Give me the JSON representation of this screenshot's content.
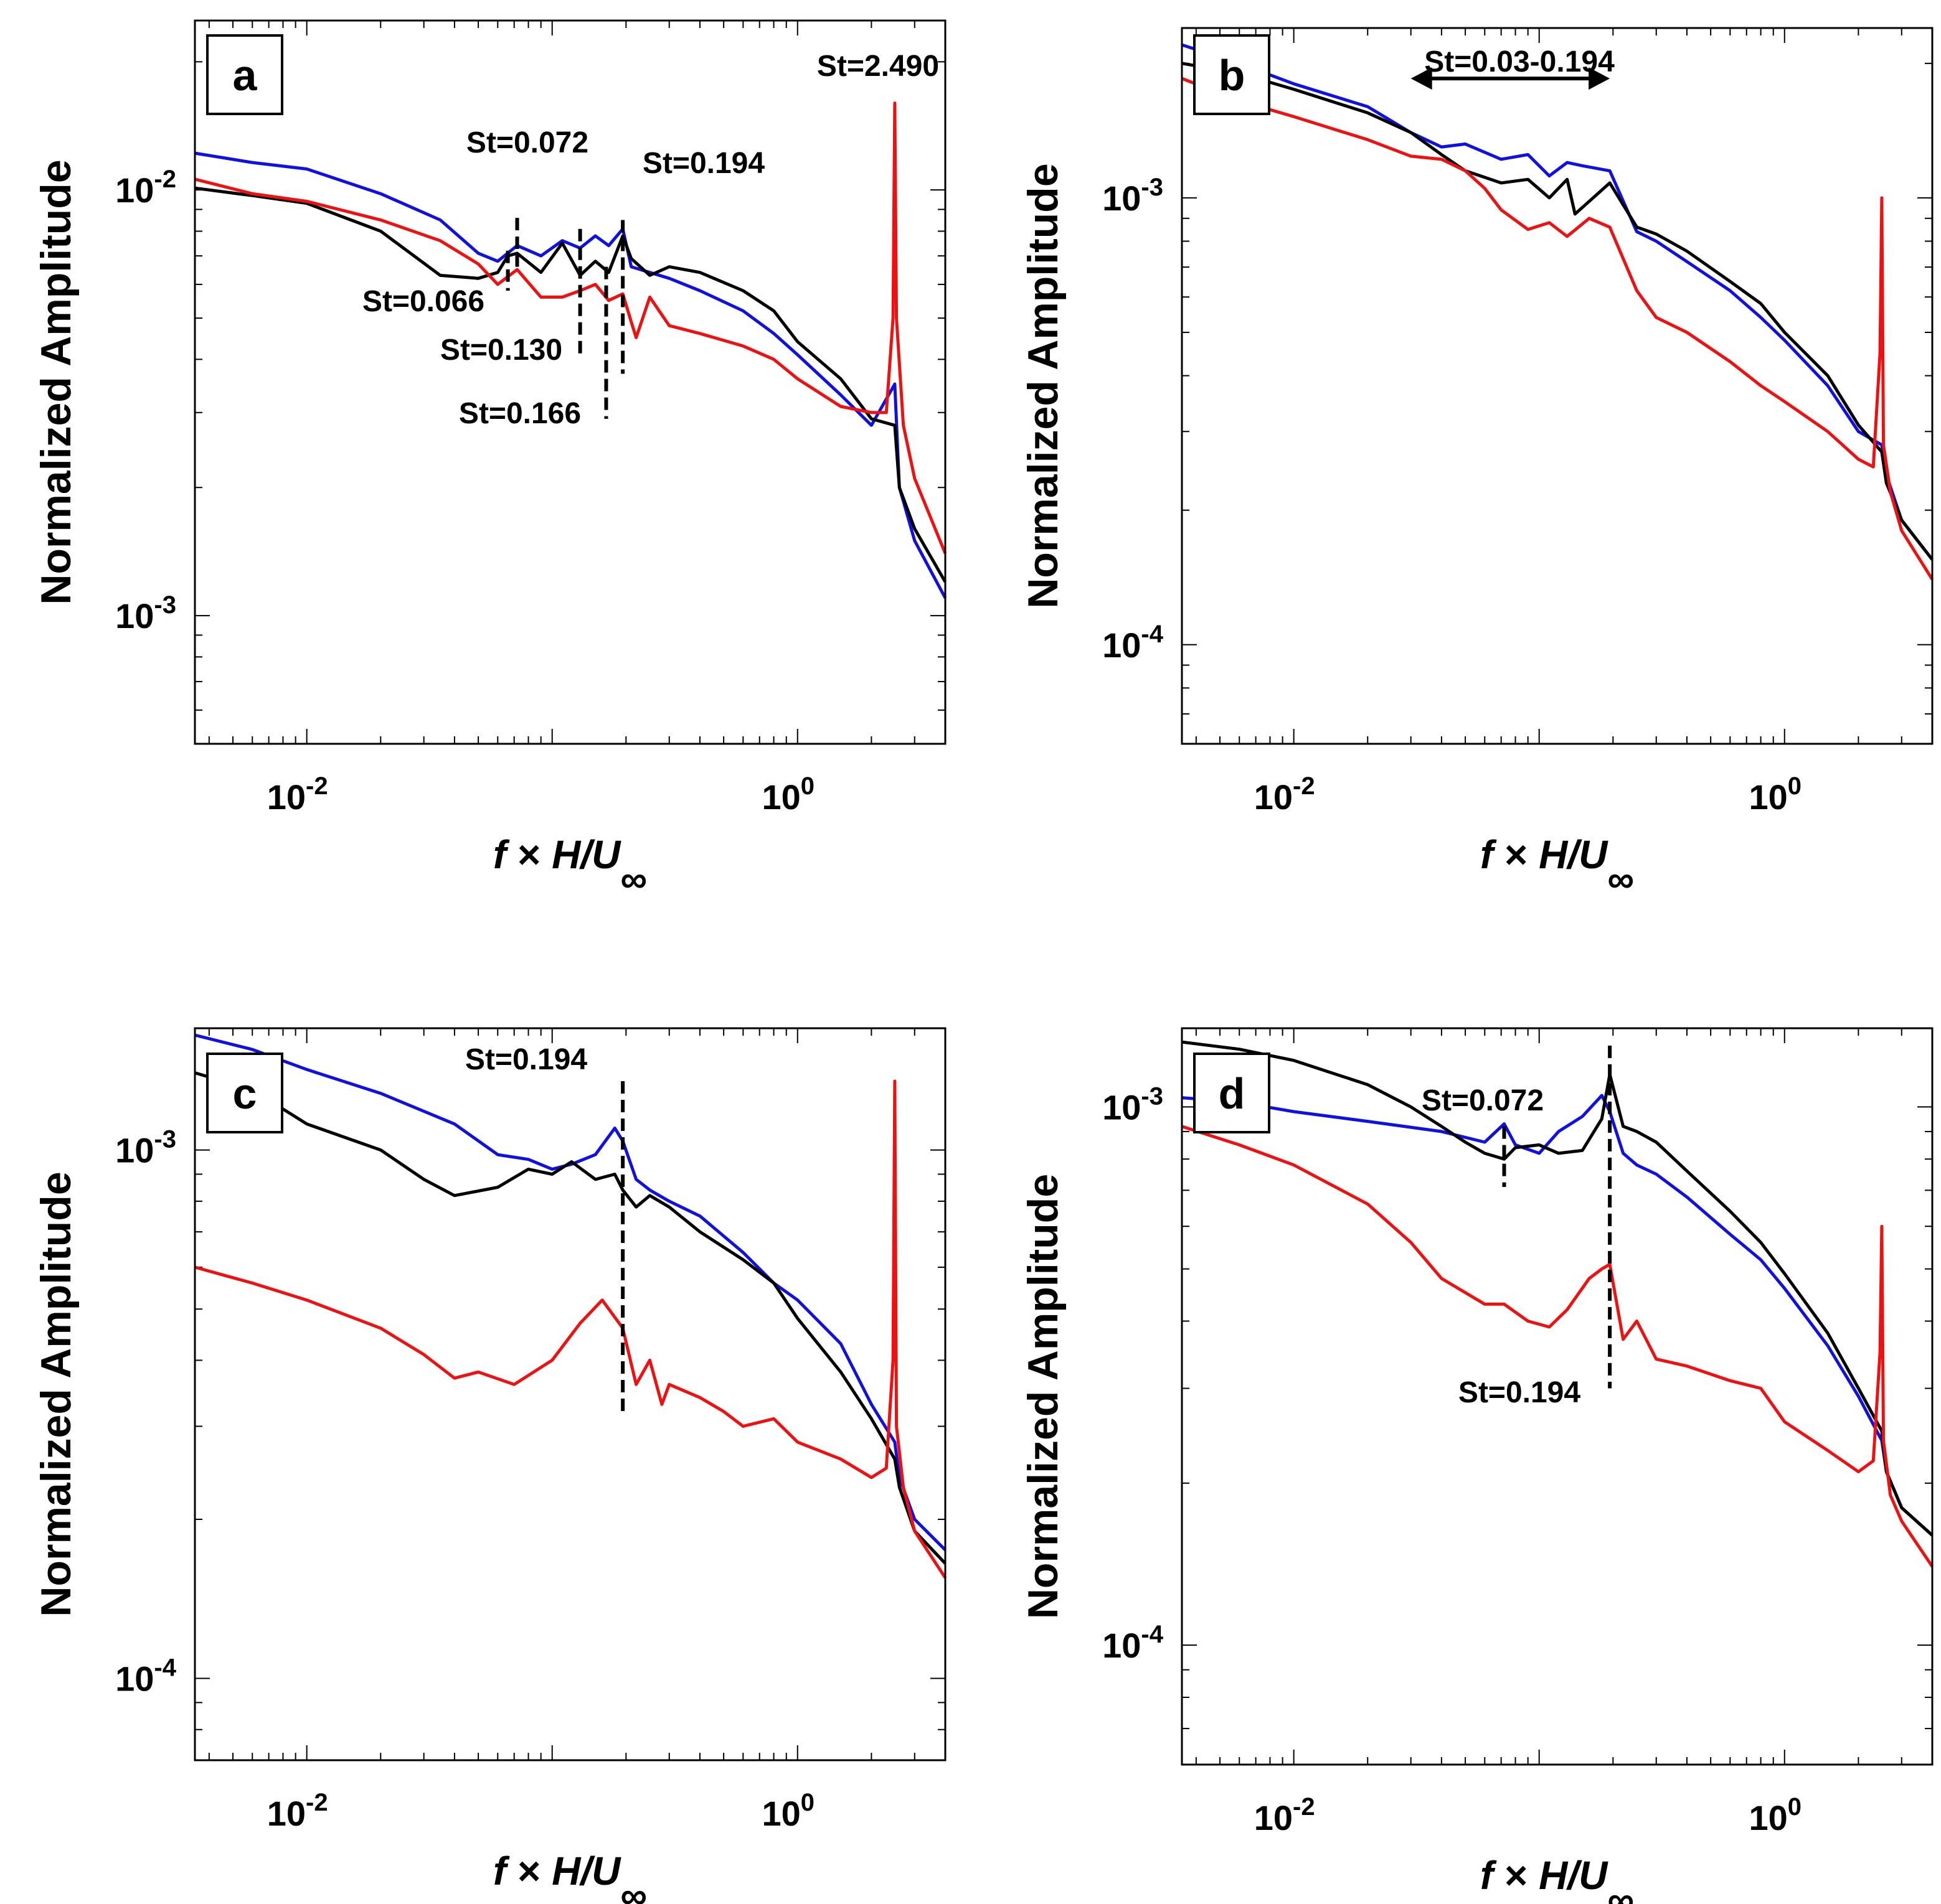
{
  "figure": {
    "ylabel": "Normalized Amplitude",
    "xlabel": {
      "f": "f",
      "times": "×",
      "hu": "H/U",
      "sub": "∞"
    },
    "xtick_labels": [
      {
        "base": "10",
        "exp": "-2"
      },
      {
        "base": "10",
        "exp": "0"
      }
    ],
    "colors": {
      "blue": "#1010e0",
      "black": "#000000",
      "red": "#ee1111"
    }
  },
  "chart_data": [
    {
      "type": "line",
      "panel": "a",
      "xscale": "log",
      "yscale": "log",
      "xlim": [
        0.0035,
        4.0
      ],
      "ylim": [
        0.0005,
        0.025
      ],
      "ytick_labels": [
        {
          "base": "10",
          "exp": "-2",
          "value": 0.01
        },
        {
          "base": "10",
          "exp": "-3",
          "value": 0.001
        }
      ],
      "series": [
        {
          "name": "blue",
          "color": "#1010e0",
          "x": [
            0.0035,
            0.006,
            0.01,
            0.02,
            0.035,
            0.05,
            0.06,
            0.072,
            0.09,
            0.11,
            0.13,
            0.15,
            0.17,
            0.194,
            0.21,
            0.25,
            0.3,
            0.4,
            0.6,
            0.8,
            1.0,
            1.5,
            2.0,
            2.49,
            2.6,
            3.0,
            4.0
          ],
          "y": [
            0.0122,
            0.0116,
            0.0112,
            0.0098,
            0.0085,
            0.0071,
            0.0068,
            0.0074,
            0.007,
            0.0076,
            0.0073,
            0.0078,
            0.0074,
            0.0081,
            0.0066,
            0.0064,
            0.0062,
            0.0058,
            0.0052,
            0.0046,
            0.0041,
            0.0033,
            0.0028,
            0.0035,
            0.002,
            0.0015,
            0.0011
          ]
        },
        {
          "name": "black",
          "color": "#000000",
          "x": [
            0.0035,
            0.006,
            0.01,
            0.02,
            0.035,
            0.05,
            0.06,
            0.066,
            0.072,
            0.09,
            0.11,
            0.13,
            0.15,
            0.17,
            0.194,
            0.21,
            0.25,
            0.3,
            0.4,
            0.6,
            0.8,
            1.0,
            1.5,
            2.0,
            2.49,
            2.6,
            3.0,
            4.0
          ],
          "y": [
            0.0101,
            0.0097,
            0.0093,
            0.008,
            0.0063,
            0.0062,
            0.0064,
            0.007,
            0.0071,
            0.0064,
            0.0075,
            0.0063,
            0.0068,
            0.0064,
            0.0078,
            0.0069,
            0.0063,
            0.0066,
            0.0064,
            0.0058,
            0.0052,
            0.0044,
            0.0036,
            0.0029,
            0.0028,
            0.002,
            0.0016,
            0.0012
          ]
        },
        {
          "name": "red",
          "color": "#ee1111",
          "x": [
            0.0035,
            0.006,
            0.01,
            0.02,
            0.035,
            0.05,
            0.06,
            0.072,
            0.09,
            0.11,
            0.13,
            0.15,
            0.17,
            0.194,
            0.21,
            0.22,
            0.25,
            0.3,
            0.4,
            0.6,
            0.8,
            1.0,
            1.5,
            2.0,
            2.3,
            2.45,
            2.49,
            2.53,
            2.7,
            3.0,
            4.0
          ],
          "y": [
            0.0106,
            0.0098,
            0.0094,
            0.0085,
            0.0076,
            0.0067,
            0.006,
            0.0065,
            0.0056,
            0.0056,
            0.0058,
            0.006,
            0.0055,
            0.0057,
            0.0049,
            0.0045,
            0.0056,
            0.0048,
            0.0046,
            0.0043,
            0.004,
            0.0036,
            0.0031,
            0.003,
            0.003,
            0.005,
            0.016,
            0.005,
            0.0028,
            0.0021,
            0.0014
          ]
        }
      ],
      "vlines": [
        {
          "x": 0.066,
          "y0": 0.0058,
          "y1": 0.0072
        },
        {
          "x": 0.072,
          "y0": 0.0066,
          "y1": 0.0086
        },
        {
          "x": 0.13,
          "y0": 0.0041,
          "y1": 0.0081
        },
        {
          "x": 0.166,
          "y0": 0.0029,
          "y1": 0.0066
        },
        {
          "x": 0.194,
          "y0": 0.0037,
          "y1": 0.0085
        }
      ],
      "annotations": [
        {
          "text": "St=0.072",
          "anchor": "above"
        },
        {
          "text": "St=0.194",
          "anchor": "right"
        },
        {
          "text": "St=0.066",
          "anchor": "below-left"
        },
        {
          "text": "St=0.130",
          "anchor": "below-left"
        },
        {
          "text": "St=0.166",
          "anchor": "below-left"
        },
        {
          "text": "St=2.490",
          "anchor": "top-right"
        }
      ]
    },
    {
      "type": "line",
      "panel": "b",
      "xscale": "log",
      "yscale": "log",
      "xlim": [
        0.0035,
        4.0
      ],
      "ylim": [
        6e-05,
        0.0024
      ],
      "ytick_labels": [
        {
          "base": "10",
          "exp": "-3",
          "value": 0.001
        },
        {
          "base": "10",
          "exp": "-4",
          "value": 0.0001
        }
      ],
      "series": [
        {
          "name": "blue",
          "color": "#1010e0",
          "x": [
            0.0035,
            0.006,
            0.01,
            0.02,
            0.03,
            0.04,
            0.05,
            0.07,
            0.09,
            0.11,
            0.13,
            0.15,
            0.194,
            0.25,
            0.3,
            0.4,
            0.6,
            0.8,
            1.0,
            1.5,
            2.0,
            2.49,
            2.6,
            3.0,
            4.0
          ],
          "y": [
            0.0022,
            0.002,
            0.0018,
            0.0016,
            0.0014,
            0.0013,
            0.00132,
            0.00122,
            0.00125,
            0.00112,
            0.0012,
            0.00118,
            0.00115,
            0.00084,
            0.0008,
            0.00072,
            0.00062,
            0.00054,
            0.00048,
            0.00038,
            0.0003,
            0.00028,
            0.00024,
            0.00019,
            0.000155
          ]
        },
        {
          "name": "black",
          "color": "#000000",
          "x": [
            0.0035,
            0.006,
            0.01,
            0.02,
            0.03,
            0.04,
            0.05,
            0.07,
            0.09,
            0.11,
            0.13,
            0.14,
            0.194,
            0.25,
            0.3,
            0.4,
            0.6,
            0.8,
            1.0,
            1.5,
            2.0,
            2.49,
            2.6,
            3.0,
            4.0
          ],
          "y": [
            0.002,
            0.0019,
            0.00175,
            0.00155,
            0.0014,
            0.00125,
            0.00115,
            0.00108,
            0.0011,
            0.001,
            0.0011,
            0.00092,
            0.00108,
            0.00086,
            0.00083,
            0.00076,
            0.00065,
            0.00058,
            0.0005,
            0.0004,
            0.00031,
            0.00027,
            0.00023,
            0.00019,
            0.000155
          ]
        },
        {
          "name": "red",
          "color": "#ee1111",
          "x": [
            0.0035,
            0.006,
            0.01,
            0.02,
            0.03,
            0.04,
            0.05,
            0.06,
            0.07,
            0.09,
            0.11,
            0.13,
            0.16,
            0.194,
            0.25,
            0.3,
            0.4,
            0.6,
            0.8,
            1.0,
            1.5,
            2.0,
            2.3,
            2.45,
            2.49,
            2.53,
            2.7,
            3.0,
            4.0
          ],
          "y": [
            0.00185,
            0.00165,
            0.00152,
            0.00135,
            0.00124,
            0.00122,
            0.00115,
            0.00105,
            0.00094,
            0.00085,
            0.00088,
            0.00082,
            0.0009,
            0.00086,
            0.00062,
            0.00054,
            0.0005,
            0.00043,
            0.00038,
            0.00035,
            0.0003,
            0.00026,
            0.00025,
            0.00045,
            0.001,
            0.00028,
            0.00022,
            0.00018,
            0.00014
          ]
        }
      ],
      "arrow": {
        "x0": 0.03,
        "x1": 0.194,
        "y": 0.00185
      },
      "annotations": [
        {
          "text": "St=0.03-0.194",
          "anchor": "above-arrow"
        }
      ]
    },
    {
      "type": "line",
      "panel": "c",
      "xscale": "log",
      "yscale": "log",
      "xlim": [
        0.0035,
        4.0
      ],
      "ylim": [
        7e-05,
        0.0017
      ],
      "ytick_labels": [
        {
          "base": "10",
          "exp": "-3",
          "value": 0.001
        },
        {
          "base": "10",
          "exp": "-4",
          "value": 0.0001
        }
      ],
      "series": [
        {
          "name": "blue",
          "color": "#1010e0",
          "x": [
            0.0035,
            0.006,
            0.01,
            0.02,
            0.04,
            0.06,
            0.08,
            0.1,
            0.12,
            0.15,
            0.18,
            0.194,
            0.22,
            0.25,
            0.3,
            0.4,
            0.6,
            0.8,
            1.0,
            1.5,
            2.0,
            2.49,
            2.6,
            3.0,
            4.0
          ],
          "y": [
            0.00165,
            0.00155,
            0.00142,
            0.00128,
            0.00112,
            0.00098,
            0.00096,
            0.00092,
            0.00094,
            0.00098,
            0.0011,
            0.00104,
            0.00088,
            0.00084,
            0.0008,
            0.00075,
            0.00064,
            0.00056,
            0.00052,
            0.00043,
            0.00033,
            0.00028,
            0.00024,
            0.0002,
            0.000175
          ]
        },
        {
          "name": "black",
          "color": "#000000",
          "x": [
            0.0035,
            0.006,
            0.01,
            0.02,
            0.03,
            0.04,
            0.06,
            0.08,
            0.1,
            0.12,
            0.15,
            0.18,
            0.194,
            0.22,
            0.25,
            0.3,
            0.4,
            0.6,
            0.8,
            1.0,
            1.5,
            2.0,
            2.49,
            2.6,
            3.0,
            4.0
          ],
          "y": [
            0.0014,
            0.0013,
            0.00112,
            0.001,
            0.00088,
            0.00082,
            0.00085,
            0.00092,
            0.0009,
            0.00095,
            0.00088,
            0.0009,
            0.00084,
            0.00078,
            0.00082,
            0.00078,
            0.0007,
            0.00062,
            0.00056,
            0.00048,
            0.00038,
            0.00031,
            0.00026,
            0.00023,
            0.00019,
            0.000165
          ]
        },
        {
          "name": "red",
          "color": "#ee1111",
          "x": [
            0.0035,
            0.006,
            0.01,
            0.02,
            0.03,
            0.04,
            0.05,
            0.07,
            0.1,
            0.13,
            0.16,
            0.194,
            0.22,
            0.25,
            0.28,
            0.3,
            0.4,
            0.5,
            0.6,
            0.8,
            1.0,
            1.5,
            2.0,
            2.3,
            2.45,
            2.49,
            2.53,
            2.7,
            3.0,
            4.0
          ],
          "y": [
            0.0006,
            0.00056,
            0.00052,
            0.00046,
            0.00041,
            0.00037,
            0.00038,
            0.00036,
            0.0004,
            0.00047,
            0.00052,
            0.00046,
            0.00036,
            0.0004,
            0.00033,
            0.00036,
            0.00034,
            0.00032,
            0.0003,
            0.00031,
            0.00028,
            0.00026,
            0.00024,
            0.00025,
            0.0004,
            0.00135,
            0.0003,
            0.00023,
            0.00019,
            0.000155
          ]
        }
      ],
      "vlines": [
        {
          "x": 0.194,
          "y0": 0.00032,
          "y1": 0.00135
        }
      ],
      "annotations": [
        {
          "text": "St=0.194",
          "anchor": "above"
        }
      ]
    },
    {
      "type": "line",
      "panel": "d",
      "xscale": "log",
      "yscale": "log",
      "xlim": [
        0.0035,
        4.0
      ],
      "ylim": [
        6e-05,
        0.0014
      ],
      "ytick_labels": [
        {
          "base": "10",
          "exp": "-3",
          "value": 0.001
        },
        {
          "base": "10",
          "exp": "-4",
          "value": 0.0001
        }
      ],
      "series": [
        {
          "name": "blue",
          "color": "#1010e0",
          "x": [
            0.0035,
            0.006,
            0.01,
            0.02,
            0.04,
            0.06,
            0.072,
            0.08,
            0.1,
            0.12,
            0.15,
            0.18,
            0.194,
            0.22,
            0.25,
            0.3,
            0.4,
            0.6,
            0.8,
            1.0,
            1.5,
            2.0,
            2.49,
            2.6,
            3.0,
            4.0
          ],
          "y": [
            0.00104,
            0.00102,
            0.00098,
            0.00094,
            0.0009,
            0.00086,
            0.00093,
            0.00085,
            0.00082,
            0.0009,
            0.00096,
            0.00105,
            0.00098,
            0.00082,
            0.00078,
            0.00075,
            0.00068,
            0.00058,
            0.00052,
            0.00046,
            0.00036,
            0.00029,
            0.00024,
            0.00021,
            0.00018,
            0.00016
          ]
        },
        {
          "name": "black",
          "color": "#000000",
          "x": [
            0.0035,
            0.006,
            0.01,
            0.02,
            0.03,
            0.04,
            0.05,
            0.06,
            0.072,
            0.08,
            0.1,
            0.12,
            0.15,
            0.18,
            0.194,
            0.22,
            0.25,
            0.3,
            0.4,
            0.6,
            0.8,
            1.0,
            1.5,
            2.0,
            2.49,
            2.6,
            3.0,
            4.0
          ],
          "y": [
            0.00132,
            0.00128,
            0.00122,
            0.0011,
            0.001,
            0.00092,
            0.00086,
            0.00082,
            0.0008,
            0.00084,
            0.00085,
            0.00082,
            0.00083,
            0.00095,
            0.00115,
            0.00092,
            0.0009,
            0.00086,
            0.00076,
            0.00064,
            0.00056,
            0.00049,
            0.00038,
            0.0003,
            0.00025,
            0.00021,
            0.00018,
            0.00016
          ]
        },
        {
          "name": "red",
          "color": "#ee1111",
          "x": [
            0.0035,
            0.006,
            0.01,
            0.02,
            0.03,
            0.04,
            0.06,
            0.072,
            0.09,
            0.11,
            0.13,
            0.16,
            0.18,
            0.194,
            0.22,
            0.25,
            0.3,
            0.4,
            0.6,
            0.8,
            1.0,
            1.5,
            2.0,
            2.3,
            2.45,
            2.49,
            2.53,
            2.7,
            3.0,
            4.0
          ],
          "y": [
            0.00092,
            0.00085,
            0.00078,
            0.00066,
            0.00056,
            0.00048,
            0.00043,
            0.00043,
            0.0004,
            0.00039,
            0.00042,
            0.00048,
            0.0005,
            0.00051,
            0.00037,
            0.0004,
            0.00034,
            0.00033,
            0.00031,
            0.0003,
            0.00026,
            0.00023,
            0.00021,
            0.00022,
            0.00035,
            0.0006,
            0.00024,
            0.00019,
            0.00017,
            0.00014
          ]
        }
      ],
      "vlines": [
        {
          "x": 0.072,
          "y0": 0.00071,
          "y1": 0.00092
        },
        {
          "x": 0.194,
          "y0": 0.0003,
          "y1": 0.0013
        }
      ],
      "annotations": [
        {
          "text": "St=0.072",
          "anchor": "above"
        },
        {
          "text": "St=0.194",
          "anchor": "below-left"
        }
      ]
    }
  ]
}
